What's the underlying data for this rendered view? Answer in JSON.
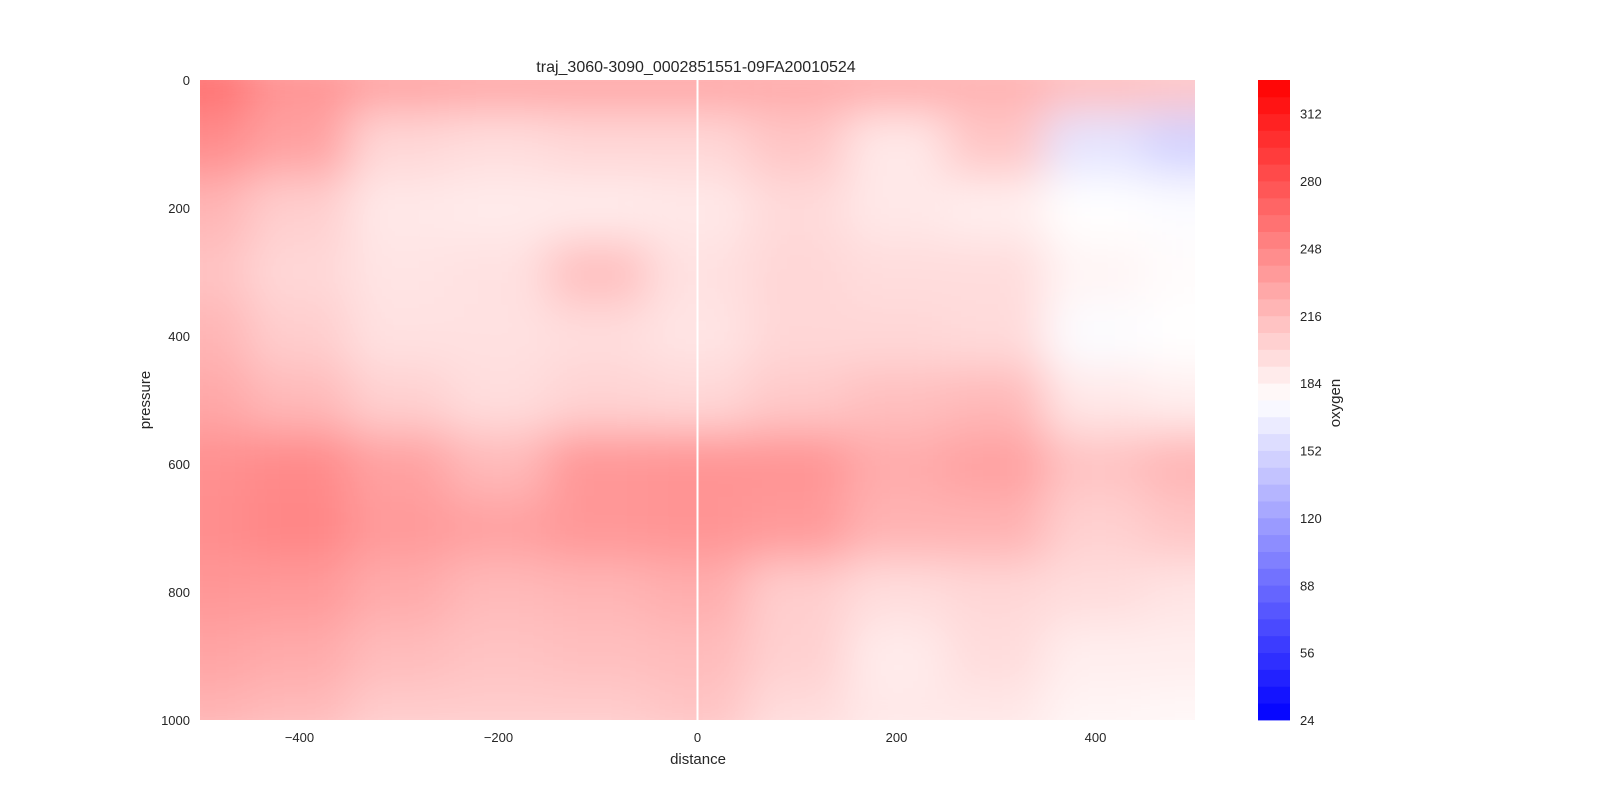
{
  "chart_data": {
    "type": "heatmap",
    "title": "traj_3060-3090_0002851551-09FA20010524",
    "xlabel": "distance",
    "ylabel": "pressure",
    "colorbar_label": "oxygen",
    "xlim": [
      -500,
      500
    ],
    "ylim": [
      1000,
      0
    ],
    "y_inverted": true,
    "grid": false,
    "x_ticks": [
      -400,
      -200,
      0,
      200,
      400
    ],
    "y_ticks": [
      0,
      200,
      400,
      600,
      800,
      1000
    ],
    "colorbar_ticks": [
      24,
      56,
      88,
      120,
      152,
      184,
      216,
      248,
      280,
      312
    ],
    "colorbar_range": [
      24,
      328
    ],
    "colorbar_levels": 38,
    "colormap": {
      "low": "#0000ff",
      "mid": "#ffffff",
      "high": "#ff0000",
      "center_value": 176
    },
    "center_line": {
      "x": 0,
      "color": "#ffffff"
    },
    "x": [
      -500,
      -400,
      -300,
      -200,
      -100,
      0,
      100,
      200,
      300,
      400,
      500
    ],
    "y": [
      0,
      100,
      200,
      300,
      400,
      500,
      600,
      700,
      800,
      900,
      1000
    ],
    "values": [
      [
        260,
        240,
        230,
        228,
        228,
        228,
        226,
        224,
        222,
        214,
        210
      ],
      [
        244,
        232,
        200,
        196,
        200,
        200,
        210,
        190,
        210,
        160,
        150
      ],
      [
        220,
        205,
        190,
        188,
        188,
        190,
        198,
        190,
        186,
        176,
        174
      ],
      [
        212,
        200,
        192,
        194,
        214,
        194,
        200,
        196,
        196,
        182,
        178
      ],
      [
        220,
        206,
        194,
        194,
        196,
        192,
        200,
        200,
        198,
        174,
        176
      ],
      [
        228,
        218,
        204,
        196,
        202,
        200,
        208,
        214,
        218,
        190,
        186
      ],
      [
        242,
        246,
        232,
        218,
        238,
        240,
        240,
        226,
        232,
        212,
        220
      ],
      [
        244,
        248,
        236,
        232,
        238,
        240,
        236,
        222,
        222,
        204,
        210
      ],
      [
        238,
        236,
        226,
        218,
        220,
        224,
        206,
        196,
        200,
        196,
        192
      ],
      [
        230,
        226,
        216,
        212,
        214,
        216,
        204,
        188,
        196,
        186,
        186
      ],
      [
        220,
        216,
        206,
        206,
        206,
        210,
        196,
        190,
        190,
        182,
        180
      ]
    ]
  }
}
